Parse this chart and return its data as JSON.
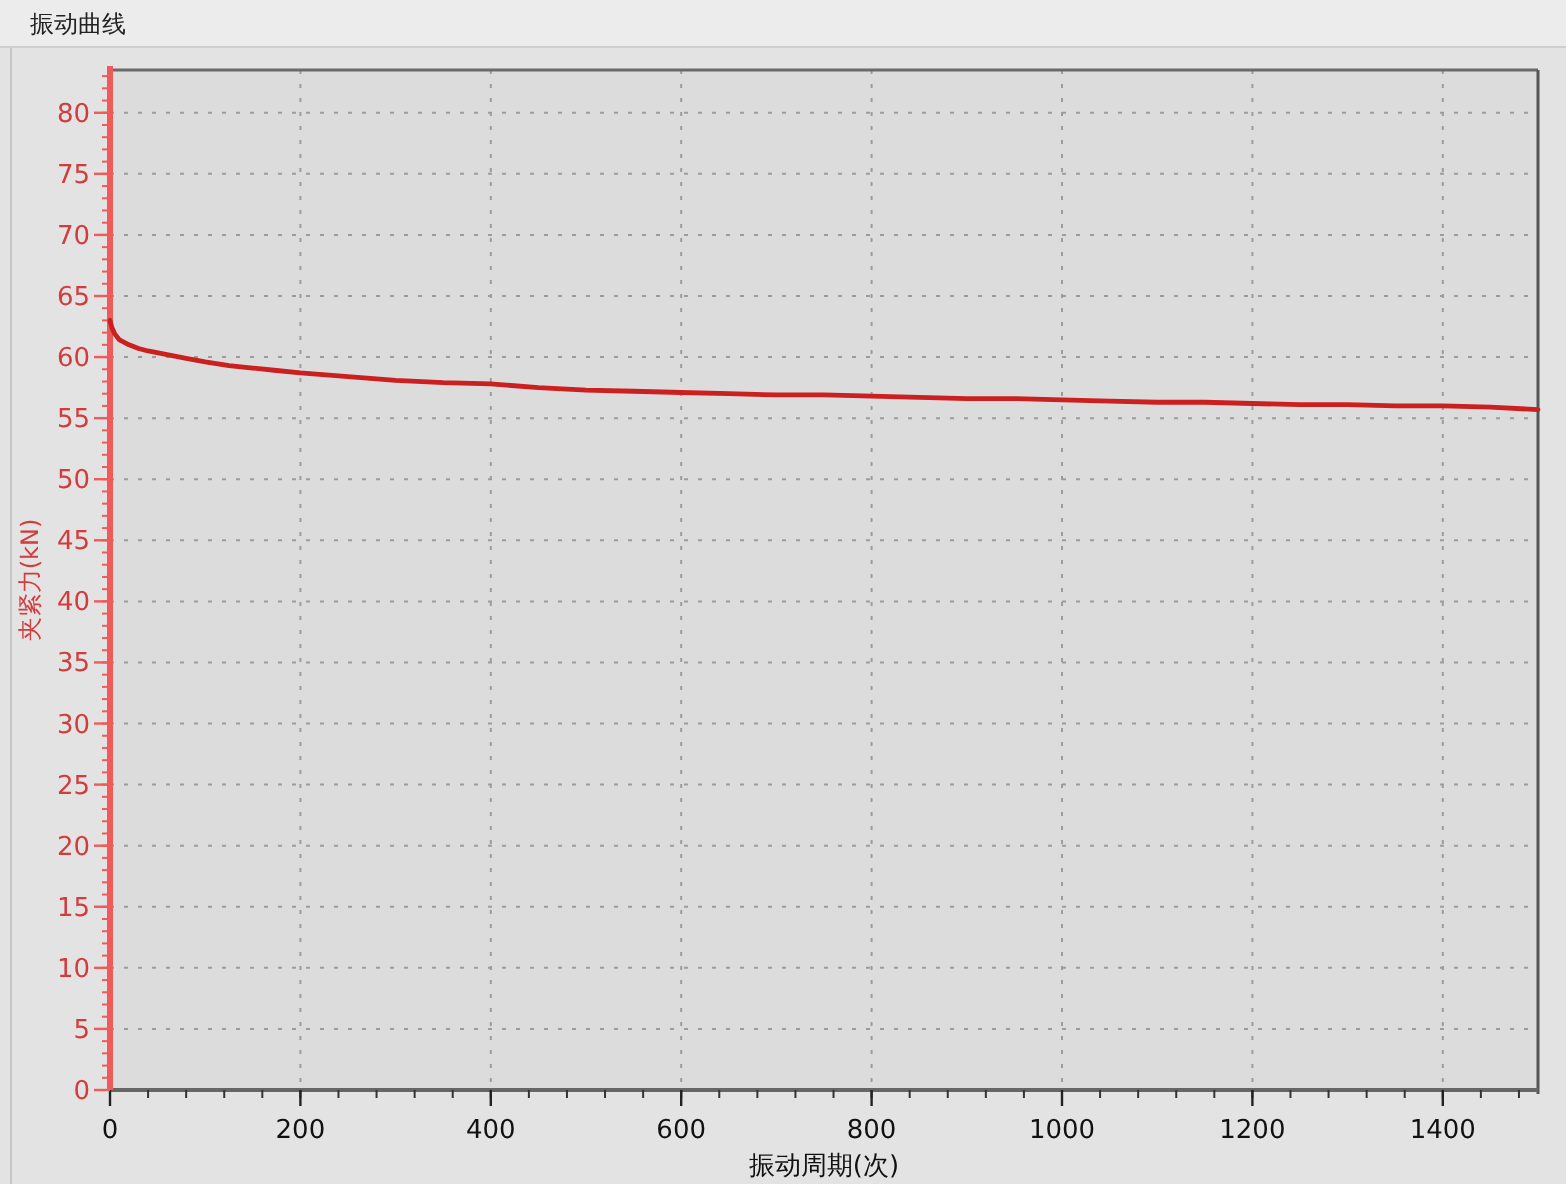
{
  "chart_data": {
    "type": "line",
    "title": "振动曲线",
    "xlabel": "振动周期(次)",
    "ylabel": "夹紧力(kN)",
    "x": [
      0,
      2,
      5,
      10,
      20,
      30,
      40,
      60,
      80,
      100,
      125,
      150,
      175,
      200,
      250,
      300,
      350,
      400,
      450,
      500,
      550,
      600,
      650,
      700,
      750,
      800,
      850,
      900,
      950,
      1000,
      1050,
      1100,
      1150,
      1200,
      1250,
      1300,
      1350,
      1400,
      1450,
      1500
    ],
    "series": [
      {
        "color": "#cc1f1f",
        "values": [
          63.0,
          62.4,
          61.9,
          61.4,
          61.0,
          60.7,
          60.5,
          60.2,
          59.9,
          59.6,
          59.3,
          59.1,
          58.9,
          58.7,
          58.4,
          58.1,
          57.9,
          57.8,
          57.5,
          57.3,
          57.2,
          57.1,
          57.0,
          56.9,
          56.9,
          56.8,
          56.7,
          56.6,
          56.6,
          56.5,
          56.4,
          56.3,
          56.3,
          56.2,
          56.1,
          56.1,
          56.0,
          56.0,
          55.9,
          55.7
        ]
      }
    ],
    "xlim": [
      0,
      1500
    ],
    "ylim": [
      0,
      83.5
    ],
    "xticks": [
      0,
      200,
      400,
      600,
      800,
      1000,
      1200,
      1400
    ],
    "yticks": [
      0,
      5,
      10,
      15,
      20,
      25,
      30,
      35,
      40,
      45,
      50,
      55,
      60,
      65,
      70,
      75,
      80
    ],
    "grid": true
  }
}
